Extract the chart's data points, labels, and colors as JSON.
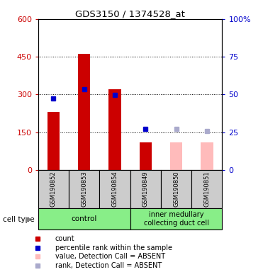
{
  "title": "GDS3150 / 1374528_at",
  "samples": [
    "GSM190852",
    "GSM190853",
    "GSM190854",
    "GSM190849",
    "GSM190850",
    "GSM190851"
  ],
  "bar_values": [
    230,
    462,
    320,
    110,
    null,
    null
  ],
  "bar_colors_present": "#cc0000",
  "bar_colors_absent": "#ffbbbb",
  "bar_absent": [
    false,
    false,
    false,
    false,
    true,
    true
  ],
  "absent_bar_values": [
    null,
    null,
    null,
    null,
    110,
    110
  ],
  "blue_sq_present": [
    285,
    320,
    298,
    162,
    null,
    null
  ],
  "blue_sq_absent": [
    null,
    null,
    null,
    null,
    162,
    155
  ],
  "blue_sq_color": "#0000cc",
  "blue_sq_absent_color": "#aaaacc",
  "ylim_left": [
    0,
    600
  ],
  "ylim_right": [
    0,
    100
  ],
  "yticks_left": [
    0,
    150,
    300,
    450,
    600
  ],
  "yticks_right": [
    0,
    25,
    50,
    75,
    100
  ],
  "ytick_labels_right": [
    "0",
    "25",
    "50",
    "75",
    "100%"
  ],
  "left_tick_color": "#cc0000",
  "right_tick_color": "#0000cc",
  "bg_color": "#cccccc",
  "group_bg_color": "#88ee88",
  "group_labels": [
    "control",
    "inner medullary\ncollecting duct cell"
  ],
  "legend_items": [
    {
      "label": "count",
      "color": "#cc0000"
    },
    {
      "label": "percentile rank within the sample",
      "color": "#0000cc"
    },
    {
      "label": "value, Detection Call = ABSENT",
      "color": "#ffbbbb"
    },
    {
      "label": "rank, Detection Call = ABSENT",
      "color": "#aaaacc"
    }
  ],
  "bar_width": 0.4
}
